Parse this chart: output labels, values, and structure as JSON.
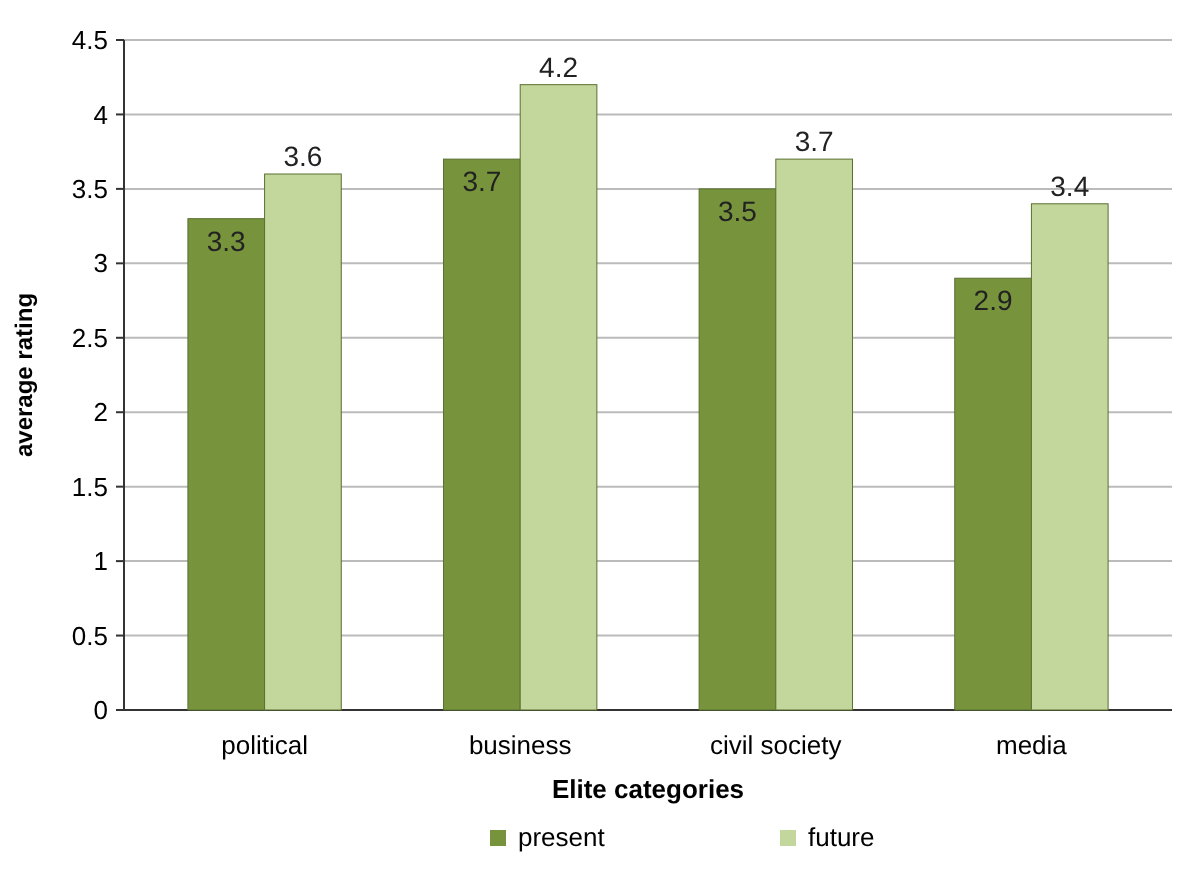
{
  "chart_data": {
    "type": "bar",
    "xlabel": "Elite categories",
    "ylabel": "average rating",
    "categories": [
      "political",
      "business",
      "civil society",
      "media"
    ],
    "series": [
      {
        "name": "present",
        "color": "#77933c",
        "values": [
          3.3,
          3.7,
          3.5,
          2.9
        ]
      },
      {
        "name": "future",
        "color": "#c3d69b",
        "values": [
          3.6,
          4.2,
          3.7,
          3.4
        ]
      }
    ],
    "ylim": [
      0,
      4.5
    ],
    "yticks": [
      0,
      0.5,
      1,
      1.5,
      2,
      2.5,
      3,
      3.5,
      4,
      4.5
    ],
    "grid": "y",
    "legend": "bottom",
    "data_labels": true
  }
}
